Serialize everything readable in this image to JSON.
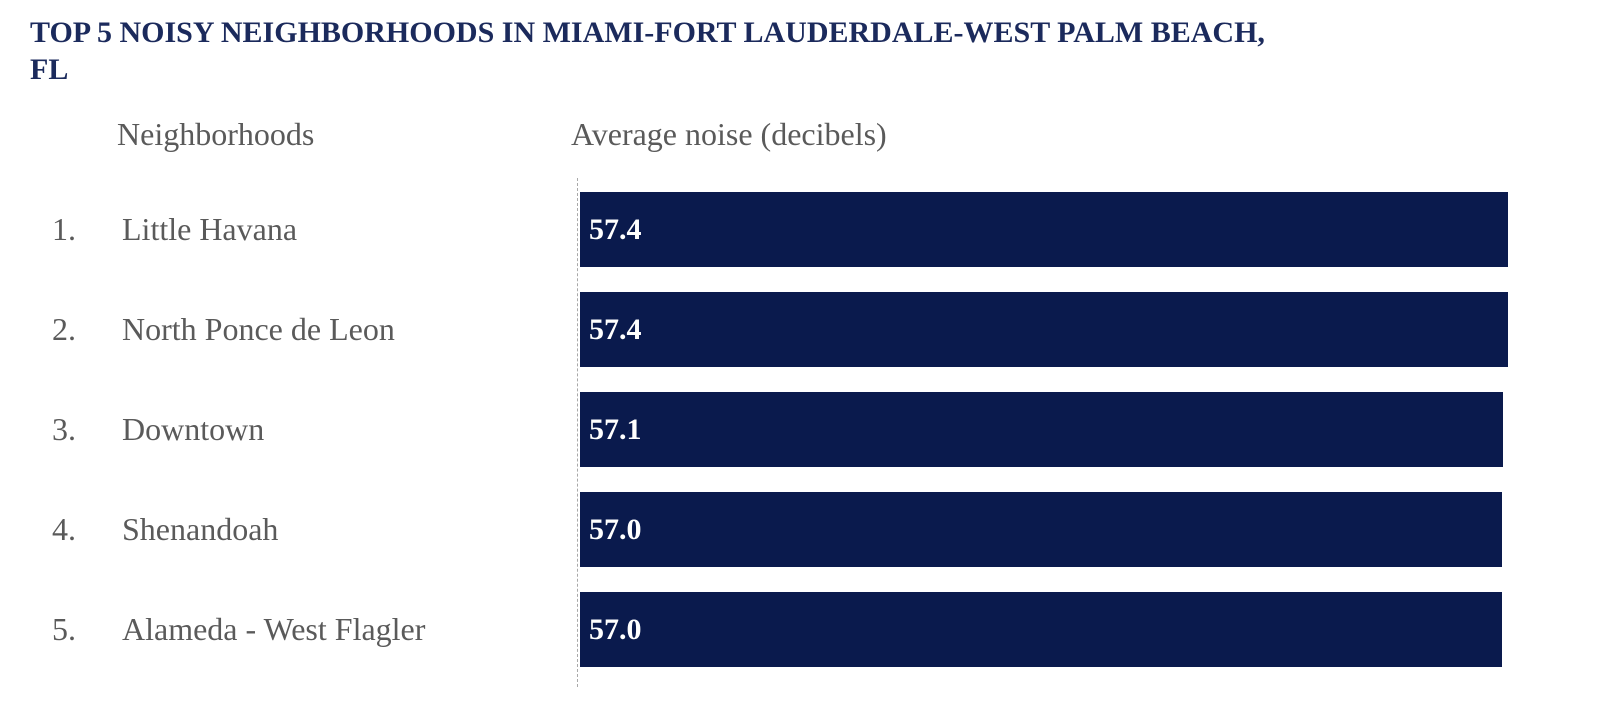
{
  "page": {
    "title_lines": [
      "TOP 5 NOISY NEIGHBORHOODS IN MIAMI-FORT LAUDERDALE-WEST PALM BEACH,",
      "FL"
    ]
  },
  "table": {
    "col1_header": "Neighborhoods",
    "col2_header": "Average noise (decibels)"
  },
  "chart_data": {
    "type": "bar",
    "title": "TOP 5 NOISY NEIGHBORHOODS IN MIAMI-FORT LAUDERDALE-WEST PALM BEACH, FL",
    "orientation": "horizontal",
    "xlabel": "Average noise (decibels)",
    "ylabel": "Neighborhoods",
    "ranks": [
      "1.",
      "2.",
      "3.",
      "4.",
      "5."
    ],
    "categories": [
      "Little Havana",
      "North Ponce de Leon",
      "Downtown",
      "Shenandoah",
      "Alameda - West Flagler"
    ],
    "values": [
      57.4,
      57.4,
      57.1,
      57.0,
      57.0
    ],
    "value_labels": [
      "57.4",
      "57.4",
      "57.1",
      "57.0",
      "57.0"
    ],
    "bar_color": "#0a1a4d",
    "value_label_color": "#ffffff",
    "title_color": "#1b2a5c",
    "text_color": "#5a5a5a",
    "grid": false,
    "legend": false,
    "axis_baseline": 0
  }
}
